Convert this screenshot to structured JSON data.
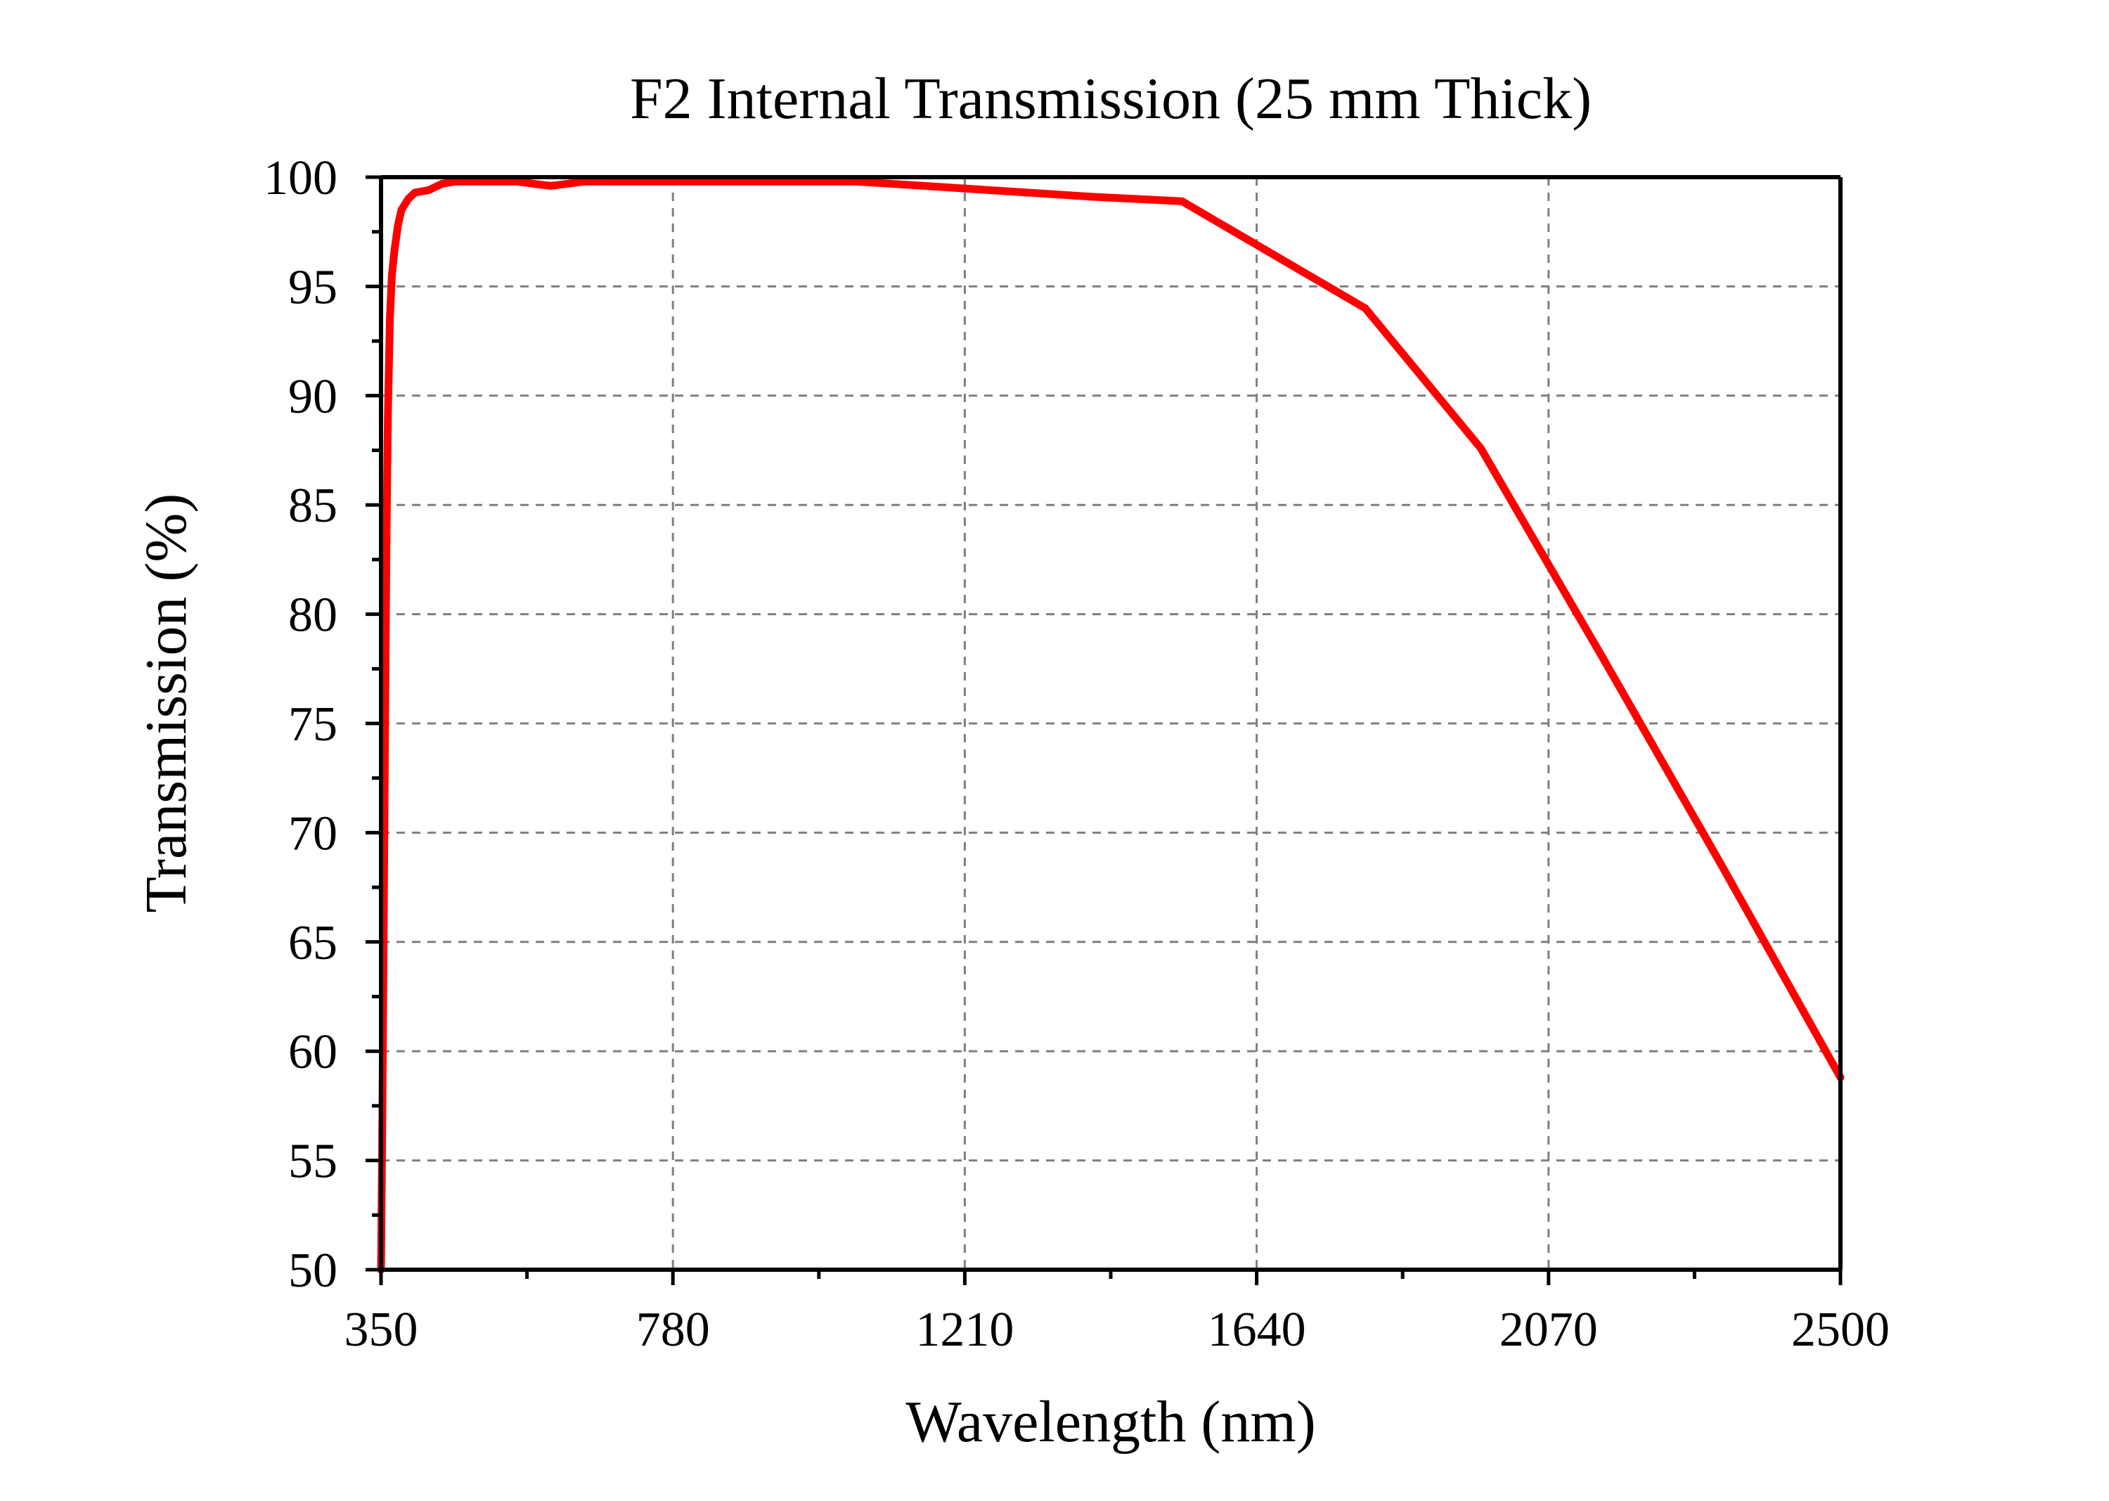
{
  "chart_data": {
    "type": "line",
    "title": "F2 Internal Transmission (25 mm Thick)",
    "xlabel": "Wavelength (nm)",
    "ylabel": "Transmission (%)",
    "xlim": [
      350,
      2500
    ],
    "ylim": [
      50,
      100
    ],
    "x_ticks": [
      350,
      780,
      1210,
      1640,
      2070,
      2500
    ],
    "y_ticks": [
      50,
      55,
      60,
      65,
      70,
      75,
      80,
      85,
      90,
      95,
      100
    ],
    "x_tick_labels": [
      "350",
      "780",
      "1210",
      "1640",
      "2070",
      "2500"
    ],
    "y_tick_labels": [
      "50",
      "55",
      "60",
      "65",
      "70",
      "75",
      "80",
      "85",
      "90",
      "95",
      "100"
    ],
    "grid": true,
    "legend": "none",
    "colors": {
      "series": "#ff0000",
      "grid": "#7f7f7f",
      "axis": "#000000"
    },
    "series": [
      {
        "x": [
          350,
          352,
          354,
          356,
          358,
          360,
          363,
          366,
          370,
          375,
          380,
          390,
          400,
          420,
          440,
          460,
          500,
          550,
          600,
          650,
          700,
          750,
          800,
          900,
          1000,
          1050,
          1100,
          1200,
          1300,
          1400,
          1530,
          1800,
          1970,
          2150,
          2325,
          2500
        ],
        "y": [
          50,
          57,
          66,
          75,
          83,
          89,
          93.5,
          95.5,
          96.7,
          97.8,
          98.5,
          99.0,
          99.3,
          99.4,
          99.7,
          99.8,
          99.8,
          99.8,
          99.6,
          99.8,
          99.8,
          99.8,
          99.8,
          99.8,
          99.8,
          99.8,
          99.7,
          99.5,
          99.3,
          99.1,
          98.9,
          94.0,
          87.6,
          78.0,
          68.5,
          58.8
        ]
      }
    ]
  }
}
